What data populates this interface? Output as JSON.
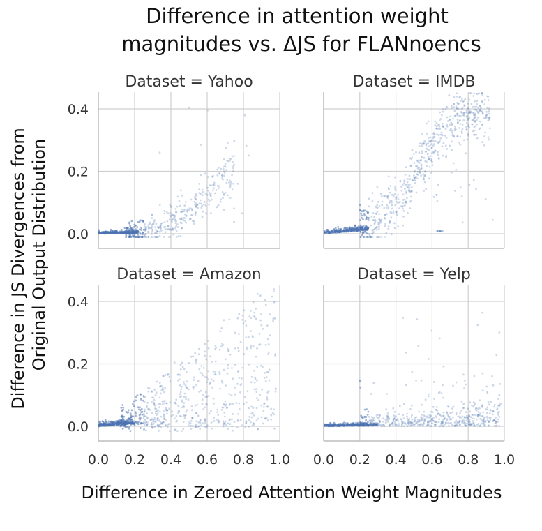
{
  "chart_data": {
    "type": "scatter",
    "title_line1": "Difference in attention weight",
    "title_line2": "magnitudes vs. ΔJS for FLANnoencs",
    "xlabel": "Difference in Zeroed Attention Weight Magnitudes",
    "ylabel_line1": "Difference in JS Divergences from",
    "ylabel_line2": "Original Output Distribution",
    "xlim": [
      0.0,
      1.0
    ],
    "ylim": [
      -0.05,
      0.45
    ],
    "x_ticks": [
      0.0,
      0.2,
      0.4,
      0.6,
      0.8,
      1.0
    ],
    "x_tick_labels": [
      "0.0",
      "0.2",
      "0.4",
      "0.6",
      "0.8",
      "1.0"
    ],
    "y_ticks": [
      0.0,
      0.2,
      0.4
    ],
    "y_tick_labels": [
      "0.0",
      "0.2",
      "0.4"
    ],
    "point_color": "#4c72b0",
    "facets": [
      {
        "title": "Dataset = Yahoo",
        "dataset": "Yahoo",
        "pattern": "moderate"
      },
      {
        "title": "Dataset = IMDB",
        "dataset": "IMDB",
        "pattern": "steep"
      },
      {
        "title": "Dataset = Amazon",
        "dataset": "Amazon",
        "pattern": "spread"
      },
      {
        "title": "Dataset = Yelp",
        "dataset": "Yelp",
        "pattern": "flat"
      }
    ]
  }
}
